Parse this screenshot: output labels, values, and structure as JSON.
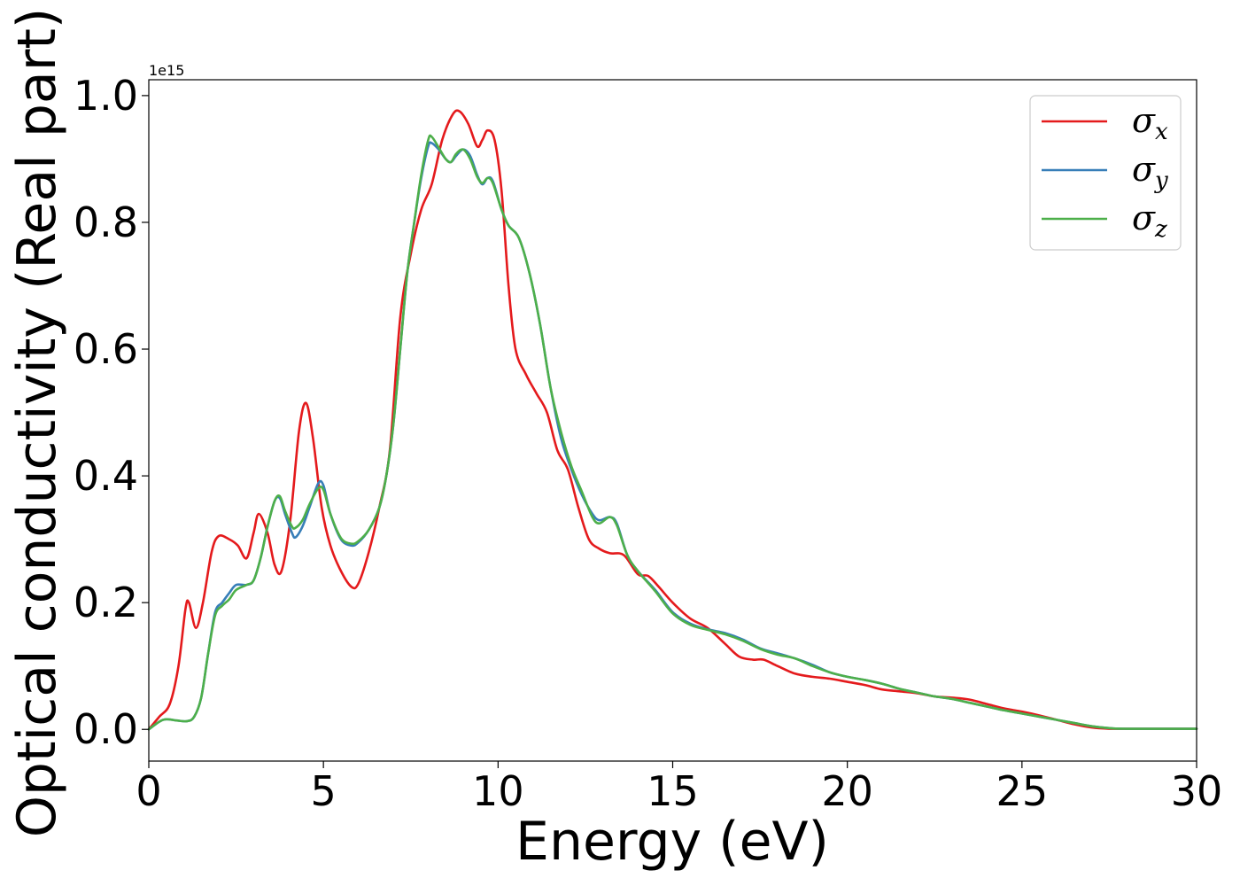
{
  "chart_data": {
    "type": "line",
    "xlabel": "Energy (eV)",
    "ylabel": "Optical conductivity (Real part)",
    "y_offset_text": "1e15",
    "y_scale_multiplier": 1000000000000000.0,
    "xlim": [
      0,
      30
    ],
    "ylim": [
      -0.05,
      1.025
    ],
    "x_ticks": [
      0,
      5,
      10,
      15,
      20,
      25,
      30
    ],
    "x_tick_labels": [
      "0",
      "5",
      "10",
      "15",
      "20",
      "25",
      "30"
    ],
    "y_ticks": [
      0.0,
      0.2,
      0.4,
      0.6,
      0.8,
      1.0
    ],
    "y_tick_labels": [
      "0.0",
      "0.2",
      "0.4",
      "0.6",
      "0.8",
      "1.0"
    ],
    "grid": false,
    "legend_position": "top-right",
    "series": [
      {
        "symbol": "σ",
        "subscript": "x",
        "color": "#e41a1c",
        "points": [
          [
            0,
            0
          ],
          [
            0.3,
            0.02
          ],
          [
            0.6,
            0.04
          ],
          [
            0.85,
            0.1
          ],
          [
            1.05,
            0.19
          ],
          [
            1.15,
            0.2
          ],
          [
            1.35,
            0.16
          ],
          [
            1.55,
            0.2
          ],
          [
            1.8,
            0.28
          ],
          [
            2.0,
            0.305
          ],
          [
            2.3,
            0.3
          ],
          [
            2.55,
            0.29
          ],
          [
            2.8,
            0.27
          ],
          [
            3.0,
            0.31
          ],
          [
            3.15,
            0.34
          ],
          [
            3.4,
            0.31
          ],
          [
            3.6,
            0.26
          ],
          [
            3.8,
            0.25
          ],
          [
            4.05,
            0.33
          ],
          [
            4.3,
            0.47
          ],
          [
            4.5,
            0.515
          ],
          [
            4.7,
            0.46
          ],
          [
            4.95,
            0.35
          ],
          [
            5.2,
            0.29
          ],
          [
            5.5,
            0.25
          ],
          [
            5.8,
            0.225
          ],
          [
            6.0,
            0.23
          ],
          [
            6.3,
            0.28
          ],
          [
            6.6,
            0.35
          ],
          [
            6.9,
            0.44
          ],
          [
            7.2,
            0.65
          ],
          [
            7.5,
            0.75
          ],
          [
            7.8,
            0.82
          ],
          [
            8.1,
            0.86
          ],
          [
            8.4,
            0.93
          ],
          [
            8.7,
            0.97
          ],
          [
            8.9,
            0.975
          ],
          [
            9.15,
            0.955
          ],
          [
            9.4,
            0.92
          ],
          [
            9.55,
            0.93
          ],
          [
            9.7,
            0.945
          ],
          [
            9.9,
            0.93
          ],
          [
            10.1,
            0.85
          ],
          [
            10.3,
            0.7
          ],
          [
            10.5,
            0.6
          ],
          [
            10.8,
            0.56
          ],
          [
            11.1,
            0.53
          ],
          [
            11.4,
            0.5
          ],
          [
            11.7,
            0.44
          ],
          [
            12.0,
            0.41
          ],
          [
            12.3,
            0.35
          ],
          [
            12.6,
            0.3
          ],
          [
            12.9,
            0.285
          ],
          [
            13.2,
            0.278
          ],
          [
            13.6,
            0.275
          ],
          [
            14.0,
            0.245
          ],
          [
            14.3,
            0.242
          ],
          [
            14.6,
            0.225
          ],
          [
            15.0,
            0.2
          ],
          [
            15.5,
            0.175
          ],
          [
            16.0,
            0.16
          ],
          [
            16.5,
            0.135
          ],
          [
            16.9,
            0.115
          ],
          [
            17.3,
            0.11
          ],
          [
            17.6,
            0.11
          ],
          [
            18.0,
            0.1
          ],
          [
            18.5,
            0.088
          ],
          [
            19.0,
            0.083
          ],
          [
            19.5,
            0.08
          ],
          [
            20.0,
            0.075
          ],
          [
            20.5,
            0.07
          ],
          [
            21.0,
            0.063
          ],
          [
            21.5,
            0.06
          ],
          [
            22.0,
            0.057
          ],
          [
            22.5,
            0.052
          ],
          [
            23.0,
            0.05
          ],
          [
            23.5,
            0.047
          ],
          [
            24.0,
            0.04
          ],
          [
            24.5,
            0.033
          ],
          [
            25.0,
            0.028
          ],
          [
            25.5,
            0.022
          ],
          [
            26.0,
            0.015
          ],
          [
            26.5,
            0.008
          ],
          [
            27.0,
            0.003
          ],
          [
            27.5,
            0.001
          ],
          [
            28,
            0.001
          ],
          [
            30,
            0.001
          ]
        ]
      },
      {
        "symbol": "σ",
        "subscript": "y",
        "color": "#377eb8",
        "points": [
          [
            0,
            0
          ],
          [
            0.3,
            0.012
          ],
          [
            0.5,
            0.016
          ],
          [
            0.8,
            0.014
          ],
          [
            1.1,
            0.013
          ],
          [
            1.3,
            0.02
          ],
          [
            1.5,
            0.05
          ],
          [
            1.7,
            0.12
          ],
          [
            1.9,
            0.185
          ],
          [
            2.1,
            0.2
          ],
          [
            2.3,
            0.215
          ],
          [
            2.5,
            0.228
          ],
          [
            2.8,
            0.228
          ],
          [
            3.0,
            0.235
          ],
          [
            3.2,
            0.27
          ],
          [
            3.4,
            0.32
          ],
          [
            3.6,
            0.36
          ],
          [
            3.75,
            0.365
          ],
          [
            3.9,
            0.34
          ],
          [
            4.1,
            0.31
          ],
          [
            4.2,
            0.303
          ],
          [
            4.4,
            0.32
          ],
          [
            4.6,
            0.35
          ],
          [
            4.85,
            0.388
          ],
          [
            5.0,
            0.385
          ],
          [
            5.2,
            0.34
          ],
          [
            5.5,
            0.3
          ],
          [
            5.8,
            0.29
          ],
          [
            6.0,
            0.295
          ],
          [
            6.3,
            0.315
          ],
          [
            6.6,
            0.35
          ],
          [
            6.8,
            0.4
          ],
          [
            7.0,
            0.48
          ],
          [
            7.2,
            0.6
          ],
          [
            7.4,
            0.72
          ],
          [
            7.6,
            0.8
          ],
          [
            7.8,
            0.87
          ],
          [
            8.0,
            0.92
          ],
          [
            8.1,
            0.925
          ],
          [
            8.3,
            0.915
          ],
          [
            8.5,
            0.9
          ],
          [
            8.65,
            0.895
          ],
          [
            8.8,
            0.905
          ],
          [
            9.0,
            0.915
          ],
          [
            9.2,
            0.905
          ],
          [
            9.4,
            0.875
          ],
          [
            9.55,
            0.86
          ],
          [
            9.7,
            0.87
          ],
          [
            9.85,
            0.865
          ],
          [
            10.1,
            0.82
          ],
          [
            10.3,
            0.795
          ],
          [
            10.6,
            0.775
          ],
          [
            10.9,
            0.72
          ],
          [
            11.2,
            0.64
          ],
          [
            11.5,
            0.54
          ],
          [
            11.8,
            0.46
          ],
          [
            12.1,
            0.41
          ],
          [
            12.4,
            0.37
          ],
          [
            12.7,
            0.34
          ],
          [
            12.9,
            0.33
          ],
          [
            13.2,
            0.335
          ],
          [
            13.4,
            0.325
          ],
          [
            13.7,
            0.275
          ],
          [
            14.0,
            0.25
          ],
          [
            14.5,
            0.22
          ],
          [
            15.0,
            0.185
          ],
          [
            15.5,
            0.167
          ],
          [
            16.0,
            0.158
          ],
          [
            16.5,
            0.152
          ],
          [
            17.0,
            0.142
          ],
          [
            17.5,
            0.128
          ],
          [
            18.0,
            0.12
          ],
          [
            18.5,
            0.112
          ],
          [
            19.0,
            0.102
          ],
          [
            19.5,
            0.09
          ],
          [
            20.0,
            0.083
          ],
          [
            20.5,
            0.078
          ],
          [
            21.0,
            0.072
          ],
          [
            21.5,
            0.064
          ],
          [
            22.0,
            0.058
          ],
          [
            22.5,
            0.052
          ],
          [
            23.0,
            0.048
          ],
          [
            23.5,
            0.042
          ],
          [
            24.0,
            0.036
          ],
          [
            24.5,
            0.03
          ],
          [
            25.0,
            0.025
          ],
          [
            25.5,
            0.02
          ],
          [
            26.0,
            0.015
          ],
          [
            26.5,
            0.01
          ],
          [
            27.0,
            0.005
          ],
          [
            27.5,
            0.002
          ],
          [
            28,
            0.001
          ],
          [
            30,
            0.001
          ]
        ]
      },
      {
        "symbol": "σ",
        "subscript": "z",
        "color": "#4daf4a",
        "points": [
          [
            0,
            0
          ],
          [
            0.3,
            0.012
          ],
          [
            0.5,
            0.016
          ],
          [
            0.8,
            0.014
          ],
          [
            1.1,
            0.013
          ],
          [
            1.3,
            0.02
          ],
          [
            1.5,
            0.05
          ],
          [
            1.7,
            0.12
          ],
          [
            1.9,
            0.18
          ],
          [
            2.1,
            0.195
          ],
          [
            2.3,
            0.205
          ],
          [
            2.5,
            0.22
          ],
          [
            2.8,
            0.228
          ],
          [
            3.0,
            0.235
          ],
          [
            3.2,
            0.27
          ],
          [
            3.4,
            0.32
          ],
          [
            3.6,
            0.36
          ],
          [
            3.75,
            0.368
          ],
          [
            3.9,
            0.345
          ],
          [
            4.1,
            0.32
          ],
          [
            4.2,
            0.318
          ],
          [
            4.4,
            0.33
          ],
          [
            4.6,
            0.355
          ],
          [
            4.85,
            0.38
          ],
          [
            5.0,
            0.378
          ],
          [
            5.2,
            0.34
          ],
          [
            5.5,
            0.302
          ],
          [
            5.8,
            0.293
          ],
          [
            6.0,
            0.297
          ],
          [
            6.3,
            0.315
          ],
          [
            6.6,
            0.35
          ],
          [
            6.8,
            0.4
          ],
          [
            7.0,
            0.48
          ],
          [
            7.2,
            0.6
          ],
          [
            7.4,
            0.72
          ],
          [
            7.6,
            0.8
          ],
          [
            7.8,
            0.875
          ],
          [
            8.0,
            0.93
          ],
          [
            8.1,
            0.935
          ],
          [
            8.3,
            0.918
          ],
          [
            8.5,
            0.9
          ],
          [
            8.65,
            0.895
          ],
          [
            8.8,
            0.908
          ],
          [
            9.0,
            0.915
          ],
          [
            9.2,
            0.9
          ],
          [
            9.4,
            0.872
          ],
          [
            9.55,
            0.862
          ],
          [
            9.7,
            0.87
          ],
          [
            9.85,
            0.862
          ],
          [
            10.1,
            0.82
          ],
          [
            10.3,
            0.795
          ],
          [
            10.6,
            0.775
          ],
          [
            10.9,
            0.72
          ],
          [
            11.2,
            0.64
          ],
          [
            11.5,
            0.54
          ],
          [
            11.8,
            0.47
          ],
          [
            12.1,
            0.415
          ],
          [
            12.4,
            0.375
          ],
          [
            12.7,
            0.335
          ],
          [
            12.9,
            0.325
          ],
          [
            13.2,
            0.335
          ],
          [
            13.4,
            0.322
          ],
          [
            13.7,
            0.275
          ],
          [
            14.0,
            0.25
          ],
          [
            14.5,
            0.218
          ],
          [
            15.0,
            0.183
          ],
          [
            15.5,
            0.165
          ],
          [
            16.0,
            0.157
          ],
          [
            16.5,
            0.15
          ],
          [
            17.0,
            0.14
          ],
          [
            17.5,
            0.127
          ],
          [
            18.0,
            0.118
          ],
          [
            18.5,
            0.112
          ],
          [
            19.0,
            0.1
          ],
          [
            19.5,
            0.09
          ],
          [
            20.0,
            0.083
          ],
          [
            20.5,
            0.078
          ],
          [
            21.0,
            0.072
          ],
          [
            21.5,
            0.064
          ],
          [
            22.0,
            0.058
          ],
          [
            22.5,
            0.052
          ],
          [
            23.0,
            0.048
          ],
          [
            23.5,
            0.042
          ],
          [
            24.0,
            0.036
          ],
          [
            24.5,
            0.03
          ],
          [
            25.0,
            0.025
          ],
          [
            25.5,
            0.02
          ],
          [
            26.0,
            0.015
          ],
          [
            26.5,
            0.01
          ],
          [
            27.0,
            0.005
          ],
          [
            27.5,
            0.002
          ],
          [
            28,
            0.001
          ],
          [
            30,
            0.001
          ]
        ]
      }
    ]
  }
}
